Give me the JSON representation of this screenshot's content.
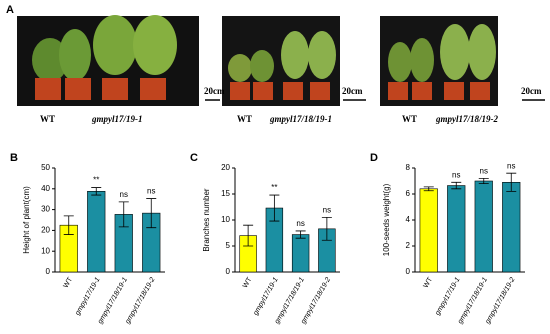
{
  "photos": {
    "panel": "A",
    "items": [
      {
        "labels": [
          "WT",
          "gmpyl17/19-1"
        ],
        "scale": "20cm"
      },
      {
        "labels": [
          "WT",
          "gmpyl17/18/19-1"
        ],
        "scale": "20cm"
      },
      {
        "labels": [
          "WT",
          "gmpyl17/18/19-2"
        ],
        "scale": "20cm"
      }
    ]
  },
  "chart_data": [
    {
      "type": "bar",
      "panel": "B",
      "y_label": "Height of plant(cm)",
      "categories": [
        "WT",
        "gmpyl17/19-1",
        "gmpyl17/18/19-1",
        "gmpyl17/18/19-2"
      ],
      "values": [
        22.5,
        38.8,
        27.7,
        28.3
      ],
      "errors": [
        4.5,
        1.8,
        6,
        7
      ],
      "colors": [
        "#ffff00",
        "#1b8fa2",
        "#1b8fa2",
        "#1b8fa2"
      ],
      "annotations": [
        null,
        "**",
        "ns",
        "ns"
      ],
      "ylim": [
        0,
        50
      ],
      "yticks": [
        0,
        10,
        20,
        30,
        40,
        50
      ]
    },
    {
      "type": "bar",
      "panel": "C",
      "y_label": "Branches number",
      "categories": [
        "WT",
        "gmpyl17/19-1",
        "gmpyl17/18/19-1",
        "gmpyl17/18/19-2"
      ],
      "values": [
        7,
        12.3,
        7.2,
        8.3
      ],
      "errors": [
        2,
        2.5,
        0.7,
        2.2
      ],
      "colors": [
        "#ffff00",
        "#1b8fa2",
        "#1b8fa2",
        "#1b8fa2"
      ],
      "annotations": [
        null,
        "**",
        "ns",
        "ns"
      ],
      "ylim": [
        0,
        20
      ],
      "yticks": [
        0,
        5,
        10,
        15,
        20
      ]
    },
    {
      "type": "bar",
      "panel": "D",
      "y_label": "100-seeds weight(g)",
      "categories": [
        "WT",
        "gmpyl17/19-1",
        "gmpyl17/18/19-1",
        "gmpyl17/18/19-2"
      ],
      "values": [
        6.4,
        6.65,
        7.0,
        6.9
      ],
      "errors": [
        0.15,
        0.25,
        0.2,
        0.7
      ],
      "colors": [
        "#ffff00",
        "#1b8fa2",
        "#1b8fa2",
        "#1b8fa2"
      ],
      "annotations": [
        null,
        "ns",
        "ns",
        "ns"
      ],
      "ylim": [
        0,
        8
      ],
      "yticks": [
        0,
        2,
        4,
        6,
        8
      ]
    }
  ]
}
